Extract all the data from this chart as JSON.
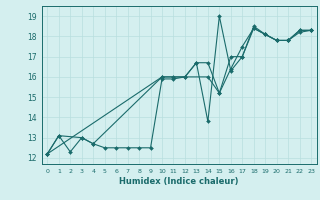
{
  "title": "",
  "xlabel": "Humidex (Indice chaleur)",
  "bg_color": "#d4efef",
  "line_color": "#1a6b6b",
  "grid_color": "#b8dede",
  "xlim": [
    -0.5,
    23.5
  ],
  "ylim": [
    11.7,
    19.5
  ],
  "xticks": [
    0,
    1,
    2,
    3,
    4,
    5,
    6,
    7,
    8,
    9,
    10,
    11,
    12,
    13,
    14,
    15,
    16,
    17,
    18,
    19,
    20,
    21,
    22,
    23
  ],
  "yticks": [
    12,
    13,
    14,
    15,
    16,
    17,
    18,
    19
  ],
  "lines": [
    {
      "x": [
        0,
        1,
        2,
        3,
        4,
        5,
        6,
        7,
        8,
        9,
        10,
        11,
        12,
        13,
        14,
        15,
        16,
        17,
        18,
        19,
        20,
        21,
        22,
        23
      ],
      "y": [
        12.2,
        13.1,
        12.3,
        13.0,
        12.7,
        12.5,
        12.5,
        12.5,
        12.5,
        12.5,
        15.9,
        15.9,
        16.0,
        16.7,
        13.8,
        19.0,
        16.3,
        17.0,
        18.5,
        18.1,
        17.8,
        17.8,
        18.3,
        18.3
      ]
    },
    {
      "x": [
        0,
        1,
        3,
        4,
        10,
        11,
        12,
        13,
        14,
        15,
        16,
        17,
        18,
        19,
        20,
        21,
        22,
        23
      ],
      "y": [
        12.2,
        13.1,
        13.0,
        12.7,
        16.0,
        16.0,
        16.0,
        16.7,
        16.7,
        15.2,
        16.4,
        17.5,
        18.4,
        18.1,
        17.8,
        17.8,
        18.3,
        18.3
      ]
    },
    {
      "x": [
        0,
        10,
        14,
        15,
        16,
        17,
        18,
        19,
        20,
        21,
        22,
        23
      ],
      "y": [
        12.2,
        16.0,
        16.0,
        15.2,
        17.0,
        17.0,
        18.4,
        18.1,
        17.8,
        17.8,
        18.2,
        18.3
      ]
    }
  ]
}
